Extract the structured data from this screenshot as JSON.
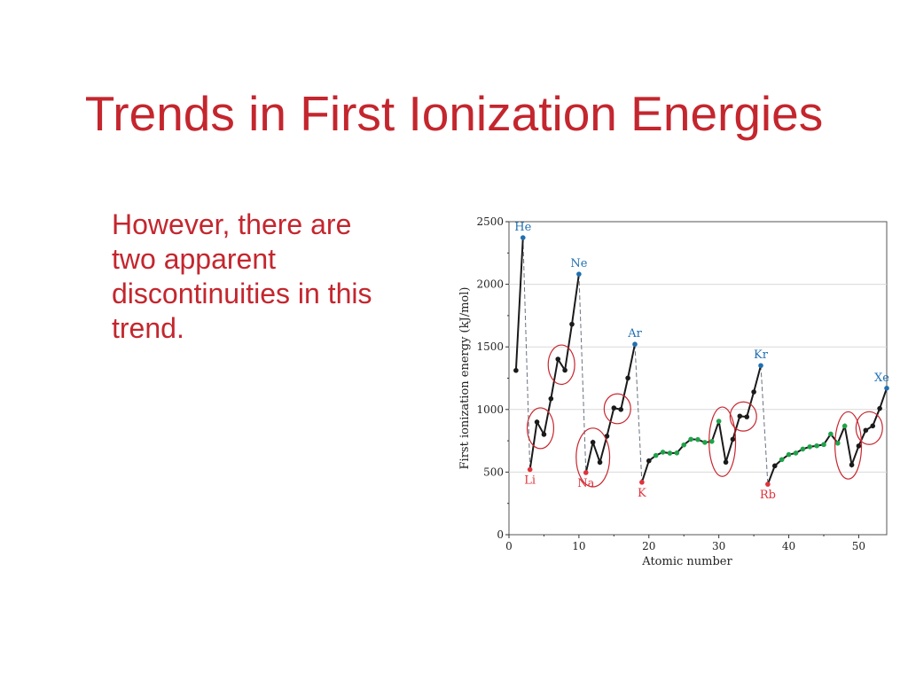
{
  "slide": {
    "title": "Trends in First Ionization Energies",
    "body_lines": [
      "However, there are",
      "two apparent",
      "discontinuities in this",
      "trend."
    ],
    "text_color": "#c4262e"
  },
  "chart_data": {
    "type": "line",
    "xlabel": "Atomic number",
    "ylabel": "First ionization energy (kJ/mol)",
    "xlim": [
      0,
      54
    ],
    "ylim": [
      0,
      2500
    ],
    "xticks": [
      0,
      10,
      20,
      30,
      40,
      50
    ],
    "yticks": [
      0,
      500,
      1000,
      1500,
      2000,
      2500
    ],
    "grid": true,
    "x": [
      1,
      2,
      3,
      4,
      5,
      6,
      7,
      8,
      9,
      10,
      11,
      12,
      13,
      14,
      15,
      16,
      17,
      18,
      19,
      20,
      21,
      22,
      23,
      24,
      25,
      26,
      27,
      28,
      29,
      30,
      31,
      32,
      33,
      34,
      35,
      36,
      37,
      38,
      39,
      40,
      41,
      42,
      43,
      44,
      45,
      46,
      47,
      48,
      49,
      50,
      51,
      52,
      53,
      54
    ],
    "values": [
      1312,
      2372,
      520,
      900,
      801,
      1086,
      1402,
      1314,
      1681,
      2081,
      496,
      738,
      578,
      787,
      1012,
      1000,
      1251,
      1521,
      419,
      590,
      633,
      659,
      651,
      653,
      717,
      762,
      760,
      737,
      745,
      906,
      579,
      762,
      947,
      941,
      1140,
      1351,
      403,
      550,
      600,
      640,
      652,
      684,
      702,
      710,
      720,
      804,
      731,
      868,
      558,
      709,
      834,
      869,
      1008,
      1170
    ],
    "point_groups": [
      {
        "group": "noble",
        "color": "#1f6fb2",
        "x": [
          2,
          10,
          18,
          36,
          54
        ]
      },
      {
        "group": "alkali",
        "color": "#e0323c",
        "x": [
          3,
          11,
          19,
          37
        ]
      },
      {
        "group": "transition",
        "color": "#1fa34a",
        "x": [
          21,
          22,
          23,
          24,
          25,
          26,
          27,
          28,
          29,
          30,
          39,
          40,
          41,
          42,
          43,
          44,
          45,
          46,
          47,
          48
        ]
      },
      {
        "group": "other",
        "color": "#1a1a1a",
        "x": [
          1,
          4,
          5,
          6,
          7,
          8,
          9,
          12,
          13,
          14,
          15,
          16,
          17,
          20,
          31,
          32,
          33,
          34,
          35,
          38,
          49,
          50,
          51,
          52,
          53
        ]
      }
    ],
    "annotations": [
      {
        "label": "He",
        "x": 2,
        "group": "noble"
      },
      {
        "label": "Ne",
        "x": 10,
        "group": "noble"
      },
      {
        "label": "Ar",
        "x": 18,
        "group": "noble"
      },
      {
        "label": "Kr",
        "x": 36,
        "group": "noble"
      },
      {
        "label": "Xe",
        "x": 54,
        "group": "noble"
      },
      {
        "label": "Li",
        "x": 3,
        "group": "alkali"
      },
      {
        "label": "Na",
        "x": 11,
        "group": "alkali"
      },
      {
        "label": "K",
        "x": 19,
        "group": "alkali"
      },
      {
        "label": "Rb",
        "x": 37,
        "group": "alkali"
      }
    ],
    "period_drops": [
      [
        2,
        3
      ],
      [
        10,
        11
      ],
      [
        18,
        19
      ],
      [
        36,
        37
      ]
    ],
    "highlight_ellipses": [
      {
        "x_range": [
          4,
          5
        ],
        "label": "period 2 group 2-13"
      },
      {
        "x_range": [
          7,
          8
        ],
        "label": "period 2 group 15-16"
      },
      {
        "x_range": [
          11,
          13
        ],
        "label": "period 3 group 2-13"
      },
      {
        "x_range": [
          15,
          16
        ],
        "label": "period 3 group 15-16"
      },
      {
        "x_range": [
          30,
          31
        ],
        "label": "period 4 group 12-13"
      },
      {
        "x_range": [
          33,
          34
        ],
        "label": "period 4 group 15-16"
      },
      {
        "x_range": [
          48,
          49
        ],
        "label": "period 5 group 12-13"
      },
      {
        "x_range": [
          51,
          52
        ],
        "label": "period 5 group 15-16"
      }
    ],
    "colors": {
      "line": "#1a1a1a",
      "ellipse": "#c7262e",
      "drop_line": "#6b7280",
      "grid": "#d9d9d9"
    }
  }
}
